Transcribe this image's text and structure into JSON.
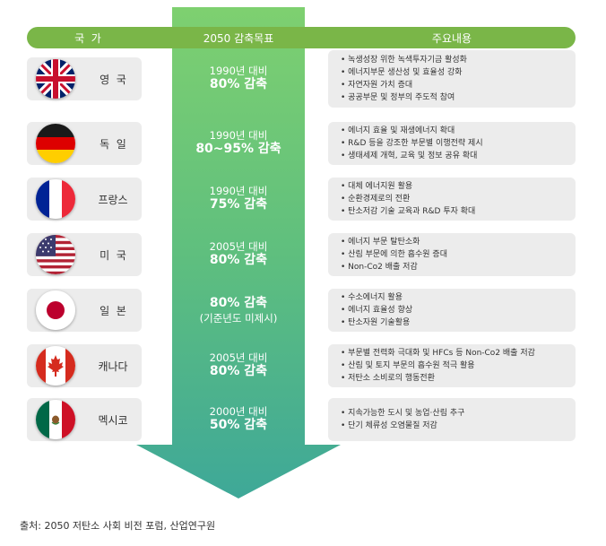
{
  "header": {
    "country": "국  가",
    "goal": "2050 감축목표",
    "content": "주요내용"
  },
  "colors": {
    "header_green": "#7ab648",
    "arrow_top": "#7ed070",
    "arrow_bottom": "#3ea898",
    "row_bg": "#ececec"
  },
  "rows": [
    {
      "country": "영  국",
      "flag_icon": "uk-flag-icon",
      "goal_line1": "1990년 대비",
      "goal_line2": "80% 감축",
      "goal_line3": "",
      "items": [
        "녹생성장 위한 녹색투자기금 활성화",
        "에너지부문 생산성 및 효율성 강화",
        "자연자원 가치 증대",
        "공공부문 및 정부의 주도적 참여"
      ]
    },
    {
      "country": "독  일",
      "flag_icon": "germany-flag-icon",
      "goal_line1": "1990년 대비",
      "goal_line2": "80~95% 감축",
      "goal_line3": "",
      "items": [
        "에너지 효율 및 재생에너지 확대",
        "R&D 등을 강조한 부문별 이행전략 제시",
        "생태세제 개혁, 교육 및 정보 공유 확대"
      ]
    },
    {
      "country": "프랑스",
      "flag_icon": "france-flag-icon",
      "goal_line1": "1990년 대비",
      "goal_line2": "75% 감축",
      "goal_line3": "",
      "items": [
        "대체 에너지원 활용",
        "순환경제로의 전환",
        "탄소저감 기술 교육과 R&D 투자 확대"
      ]
    },
    {
      "country": "미  국",
      "flag_icon": "usa-flag-icon",
      "goal_line1": "2005년 대비",
      "goal_line2": "80% 감축",
      "goal_line3": "",
      "items": [
        "에너지 부문 탈탄소화",
        "산림 부문에 의한 흡수원 증대",
        "Non-Co2 배출 저감"
      ]
    },
    {
      "country": "일  본",
      "flag_icon": "japan-flag-icon",
      "goal_line1": "",
      "goal_line2": "80% 감축",
      "goal_line3": "(기준년도 미제시)",
      "items": [
        "수소에너지 활용",
        "에너지 효율성 향상",
        "탄소자원 기술활용"
      ]
    },
    {
      "country": "캐나다",
      "flag_icon": "canada-flag-icon",
      "goal_line1": "2005년 대비",
      "goal_line2": "80% 감축",
      "goal_line3": "",
      "items": [
        "부문별 전력화 극대화 및 HFCs 등 Non-Co2 배출 저감",
        "산림 및 토지 부문의 흡수원 적극 활용",
        "저탄소 소비로의 행동전환"
      ]
    },
    {
      "country": "멕시코",
      "flag_icon": "mexico-flag-icon",
      "goal_line1": "2000년 대비",
      "goal_line2": "50% 감축",
      "goal_line3": "",
      "items": [
        "지속가능한 도시 및 농업·산림 추구",
        "단기 체류성 오염물질 저감"
      ]
    }
  ],
  "source": "출처: 2050 저탄소 사회 비전 포럼, 산업연구원"
}
